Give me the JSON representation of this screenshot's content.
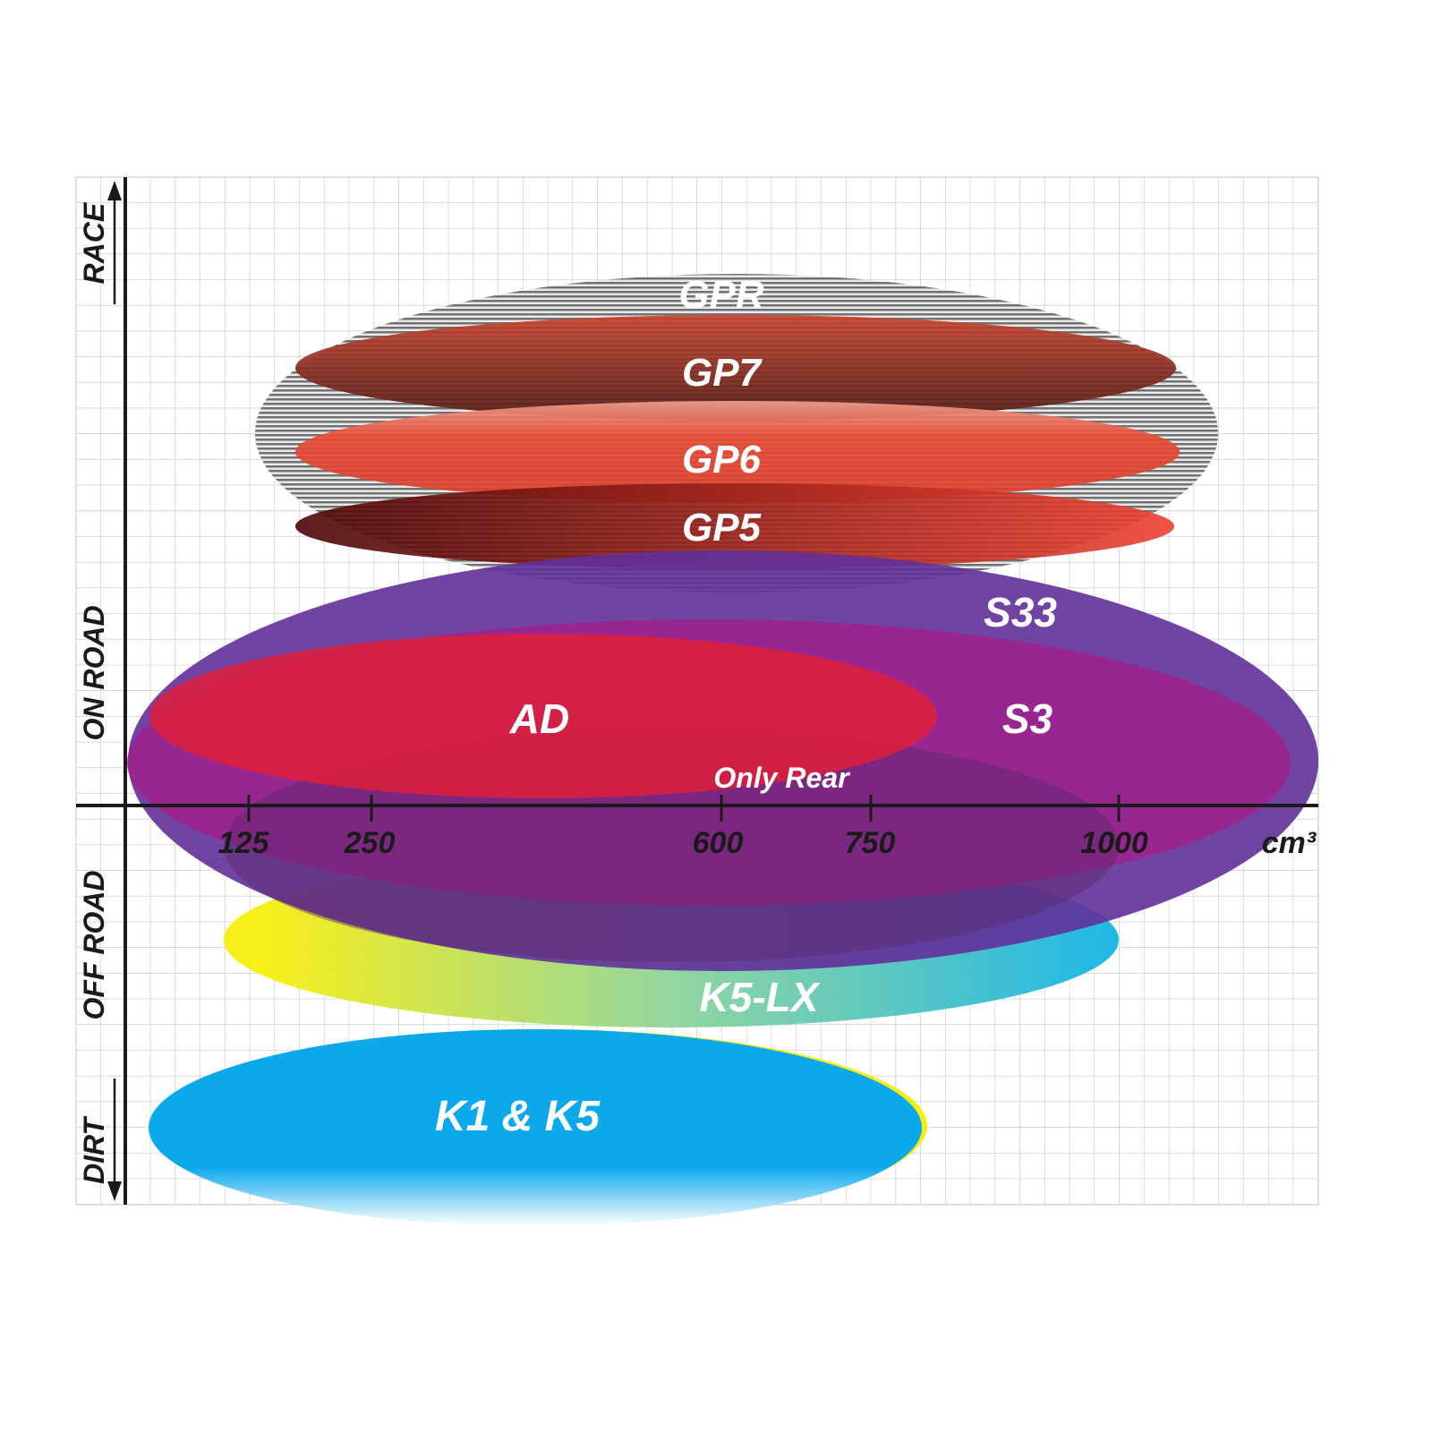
{
  "y_axis": {
    "labels": [
      "RACE",
      "ON ROAD",
      "OFF ROAD",
      "DIRT"
    ]
  },
  "x_axis": {
    "ticks": [
      "125",
      "250",
      "600",
      "750",
      "1000"
    ],
    "unit": "cm³"
  },
  "products": {
    "gpr": "GPR",
    "gp7": "GP7",
    "gp6": "GP6",
    "gp5": "GP5",
    "s33": "S33",
    "s3": "S3",
    "ad": "AD",
    "only_rear": "Only Rear",
    "k5lx": "K5-LX",
    "k1k5": "K1 & K5"
  },
  "colors": {
    "gpr": "#8a8a8a",
    "gp7": "#b8412c",
    "gp6": "#e2452f",
    "gp5": "#7a1010",
    "s33": "#62309a",
    "s3": "#9c1f8e",
    "ad": "#d9203e",
    "k5lx": "#f2ec1c",
    "k1k5": "#10a8e8",
    "grid": "#c8c8c8",
    "axis": "#1a1a1a"
  }
}
